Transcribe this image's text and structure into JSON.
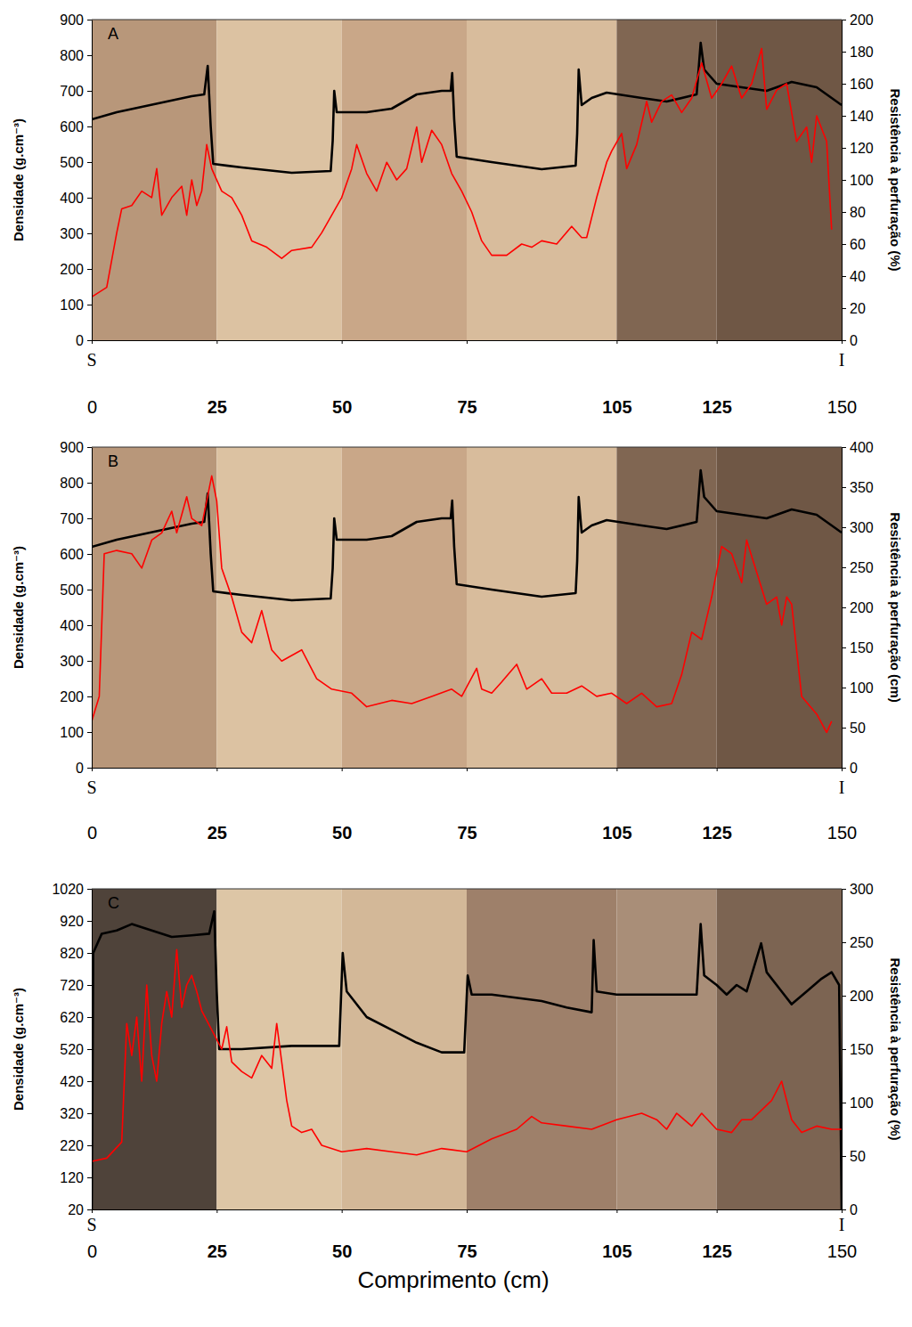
{
  "chart_data": [
    {
      "type": "line",
      "title": "A",
      "ylabel": "Densidade (g.cm⁻³)",
      "y2label": "Resistência à perfuração (%)",
      "annotations": [
        {
          "text": "S",
          "x": 0
        },
        {
          "text": "I",
          "x": 150
        }
      ],
      "xlim": [
        0,
        150
      ],
      "xticks": [
        0,
        25,
        50,
        75,
        105,
        125,
        150
      ],
      "ylim": [
        0,
        900
      ],
      "yticks": [
        0,
        100,
        200,
        300,
        400,
        500,
        600,
        700,
        800,
        900
      ],
      "y2lim": [
        0,
        200
      ],
      "y2ticks": [
        0,
        20,
        40,
        60,
        80,
        100,
        120,
        140,
        160,
        180,
        200
      ],
      "series": [
        {
          "color": "#000000",
          "x": [
            0,
            5,
            10,
            15,
            20,
            22.5,
            23.2,
            23.8,
            24.3,
            30,
            40,
            47.8,
            48.2,
            48.5,
            49,
            55,
            60,
            65,
            70,
            71.8,
            72.1,
            72.5,
            73,
            80,
            90,
            96.8,
            97.1,
            97.4,
            98,
            100,
            103,
            110,
            115,
            121,
            121.8,
            122.5,
            125,
            130,
            135,
            140,
            145,
            150
          ],
          "values": [
            620,
            640,
            655,
            670,
            685,
            690,
            770,
            600,
            495,
            485,
            470,
            475,
            560,
            700,
            640,
            640,
            650,
            690,
            700,
            700,
            750,
            620,
            515,
            500,
            480,
            490,
            580,
            760,
            660,
            680,
            695,
            680,
            670,
            690,
            835,
            760,
            720,
            710,
            700,
            725,
            710,
            660
          ]
        },
        {
          "color": "#ff0000",
          "axis": "y2",
          "x": [
            0,
            3,
            5,
            6,
            8,
            10,
            12,
            13,
            14,
            16,
            18,
            19,
            20,
            21,
            22,
            23,
            24,
            26,
            28,
            30,
            32,
            35,
            38,
            40,
            44,
            46,
            48,
            50,
            52,
            53,
            55,
            57,
            59,
            61,
            63,
            65,
            66,
            68,
            70,
            72,
            74,
            76,
            78,
            80,
            83,
            86,
            88,
            90,
            93,
            96,
            98,
            99,
            101,
            103,
            104,
            106,
            107,
            109,
            111,
            112,
            114,
            116,
            118,
            120,
            122,
            124,
            126,
            128,
            130,
            132,
            134,
            135,
            137,
            139,
            141,
            143,
            144,
            145,
            147,
            148
          ],
          "values": [
            27,
            33,
            67,
            82,
            84,
            93,
            89,
            107,
            78,
            89,
            96,
            78,
            100,
            84,
            93,
            122,
            107,
            93,
            89,
            78,
            62,
            58,
            51,
            56,
            58,
            67,
            78,
            89,
            107,
            122,
            104,
            93,
            111,
            100,
            107,
            133,
            111,
            131,
            122,
            104,
            93,
            80,
            62,
            53,
            53,
            60,
            58,
            62,
            60,
            71,
            64,
            64,
            89,
            111,
            118,
            129,
            107,
            122,
            149,
            136,
            149,
            153,
            142,
            151,
            173,
            151,
            160,
            171,
            151,
            160,
            182,
            144,
            156,
            160,
            124,
            133,
            111,
            140,
            124,
            69
          ]
        }
      ]
    },
    {
      "type": "line",
      "title": "B",
      "ylabel": "Densidade (g.cm⁻³)",
      "y2label": "Resistência à perfuração (cm)",
      "annotations": [
        {
          "text": "S",
          "x": 0
        },
        {
          "text": "I",
          "x": 150
        }
      ],
      "xlim": [
        0,
        150
      ],
      "xticks": [
        0,
        25,
        50,
        75,
        105,
        125,
        150
      ],
      "ylim": [
        0,
        900
      ],
      "yticks": [
        0,
        100,
        200,
        300,
        400,
        500,
        600,
        700,
        800,
        900
      ],
      "y2lim": [
        0,
        400
      ],
      "y2ticks": [
        0,
        50,
        100,
        150,
        200,
        250,
        300,
        350,
        400
      ],
      "series": [
        {
          "color": "#000000",
          "x": [
            0,
            5,
            10,
            15,
            20,
            22.5,
            23.2,
            23.8,
            24.3,
            30,
            40,
            47.8,
            48.2,
            48.5,
            49,
            55,
            60,
            65,
            70,
            71.8,
            72.1,
            72.5,
            73,
            80,
            90,
            96.8,
            97.1,
            97.4,
            98,
            100,
            103,
            110,
            115,
            121,
            121.8,
            122.5,
            125,
            130,
            135,
            140,
            145,
            150
          ],
          "values": [
            620,
            640,
            655,
            670,
            685,
            690,
            770,
            600,
            495,
            485,
            470,
            475,
            560,
            700,
            640,
            640,
            650,
            690,
            700,
            700,
            750,
            620,
            515,
            500,
            480,
            490,
            580,
            760,
            660,
            680,
            695,
            680,
            670,
            690,
            835,
            760,
            720,
            710,
            700,
            725,
            710,
            660
          ]
        },
        {
          "color": "#ff0000",
          "axis": "y2",
          "x": [
            0,
            1.5,
            2.5,
            5,
            8,
            10,
            12,
            14,
            16,
            17,
            19,
            20,
            22,
            24,
            25,
            26,
            28,
            30,
            32,
            34,
            36,
            38,
            42,
            45,
            48,
            52,
            55,
            60,
            64,
            68,
            72,
            74,
            77,
            78,
            80,
            82,
            85,
            87,
            90,
            92,
            95,
            98,
            101,
            104,
            107,
            110,
            113,
            116,
            118,
            120,
            122,
            124,
            126,
            128,
            130,
            131,
            133,
            135,
            137,
            138,
            139,
            140,
            142,
            145,
            147,
            148
          ],
          "values": [
            58,
            89,
            267,
            271,
            267,
            249,
            284,
            293,
            320,
            293,
            338,
            311,
            302,
            364,
            333,
            249,
            213,
            169,
            156,
            196,
            147,
            133,
            147,
            111,
            98,
            93,
            76,
            84,
            80,
            89,
            98,
            89,
            124,
            98,
            93,
            107,
            129,
            98,
            111,
            93,
            93,
            102,
            89,
            93,
            80,
            93,
            76,
            80,
            116,
            169,
            160,
            213,
            276,
            267,
            231,
            284,
            244,
            204,
            213,
            178,
            213,
            204,
            89,
            67,
            44,
            58
          ]
        }
      ]
    },
    {
      "type": "line",
      "title": "C",
      "ylabel": "Densidade (g.cm⁻³)",
      "y2label": "Resistência à perfuração (%)",
      "xlabel": "Comprimento (cm)",
      "annotations": [
        {
          "text": "S",
          "x": 0
        },
        {
          "text": "I",
          "x": 150
        }
      ],
      "xlim": [
        0,
        150
      ],
      "xticks": [
        0,
        25,
        50,
        75,
        105,
        125,
        150
      ],
      "ylim": [
        20,
        1020
      ],
      "yticks": [
        20,
        120,
        220,
        320,
        420,
        520,
        620,
        720,
        820,
        920,
        1020
      ],
      "y2lim": [
        0,
        300
      ],
      "y2ticks": [
        0,
        50,
        100,
        150,
        200,
        250,
        300
      ],
      "series": [
        {
          "color": "#000000",
          "x": [
            0,
            0.3,
            2,
            5,
            8,
            12,
            16,
            20,
            23.5,
            24.5,
            25,
            25.5,
            30,
            40,
            49.5,
            50.2,
            51,
            55,
            60,
            65,
            70,
            74.5,
            75.2,
            76,
            80,
            90,
            95,
            100,
            100.4,
            101,
            105,
            110,
            115,
            121,
            121.8,
            122.5,
            125,
            127,
            129,
            131,
            133.9,
            135,
            138,
            140,
            143,
            146,
            148,
            149.5,
            150
          ],
          "values": [
            20,
            820,
            880,
            890,
            910,
            890,
            870,
            875,
            880,
            950,
            700,
            520,
            520,
            530,
            530,
            820,
            700,
            620,
            580,
            540,
            510,
            510,
            750,
            690,
            690,
            670,
            650,
            635,
            860,
            700,
            690,
            690,
            690,
            690,
            910,
            750,
            720,
            690,
            720,
            700,
            850,
            760,
            700,
            660,
            700,
            740,
            760,
            720,
            20
          ]
        },
        {
          "color": "#ff0000",
          "axis": "y2",
          "x": [
            0,
            3,
            6,
            7,
            8,
            9,
            10,
            11,
            12,
            13,
            14,
            15,
            16,
            17,
            18,
            19,
            20,
            21,
            22,
            24,
            26,
            27,
            28,
            30,
            32,
            34,
            36,
            37,
            38,
            39,
            40,
            42,
            44,
            46,
            50,
            55,
            60,
            65,
            70,
            75,
            80,
            85,
            88,
            90,
            95,
            100,
            105,
            110,
            113,
            115,
            117,
            120,
            122,
            125,
            128,
            130,
            132,
            134,
            136,
            138,
            140,
            142,
            145,
            148,
            150
          ],
          "values": [
            45,
            48,
            63,
            174,
            144,
            180,
            120,
            210,
            144,
            120,
            174,
            204,
            180,
            243,
            189,
            210,
            219,
            204,
            186,
            168,
            150,
            171,
            138,
            129,
            123,
            144,
            132,
            174,
            138,
            102,
            78,
            72,
            75,
            60,
            54,
            57,
            54,
            51,
            57,
            54,
            66,
            75,
            87,
            81,
            78,
            75,
            84,
            90,
            84,
            75,
            90,
            78,
            90,
            75,
            72,
            84,
            84,
            93,
            102,
            120,
            84,
            72,
            78,
            75,
            75
          ]
        }
      ]
    }
  ]
}
